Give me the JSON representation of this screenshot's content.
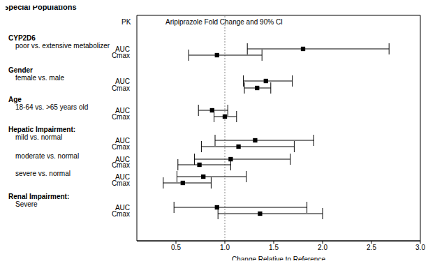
{
  "chart_data": {
    "type": "forest",
    "title": "Special Populations",
    "column_header": "PK",
    "subtitle": "Aripiprazole Fold Change and 90% CI",
    "x_label": "Change Relative to Reference",
    "xlim": [
      0.1,
      3
    ],
    "xticks": [
      0.5,
      {
        "value": 1,
        "label": "1.0"
      },
      1.5,
      {
        "value": 2,
        "label": "2.0"
      },
      2.5,
      {
        "value": 3,
        "label": "3.0"
      }
    ],
    "reference": 1,
    "color": "#000000",
    "marker": "square",
    "groups": [
      {
        "label": "CYP2D6",
        "sublabel": "poor vs. extensive metabolizer",
        "rows": [
          {
            "measure": "AUC",
            "value": 1.8,
            "ci": [
              1.23,
              2.68
            ]
          },
          {
            "measure": "Cmax",
            "value": 0.92,
            "ci": [
              0.63,
              1.38
            ]
          }
        ]
      },
      {
        "label": "Gender",
        "sublabel": "female vs. male",
        "rows": [
          {
            "measure": "AUC",
            "value": 1.42,
            "ci": [
              1.19,
              1.69
            ]
          },
          {
            "measure": "Cmax",
            "value": 1.33,
            "ci": [
              1.2,
              1.47
            ]
          }
        ]
      },
      {
        "label": "Age",
        "sublabel": "18-64 vs. >65 years old",
        "rows": [
          {
            "measure": "AUC",
            "value": 0.87,
            "ci": [
              0.73,
              1.03
            ]
          },
          {
            "measure": "Cmax",
            "value": 1.0,
            "ci": [
              0.89,
              1.12
            ]
          }
        ]
      },
      {
        "label": "Hepatic Impairment:",
        "sublabel": "mild vs. normal",
        "rows": [
          {
            "measure": "AUC",
            "value": 1.31,
            "ci": [
              0.9,
              1.91
            ]
          },
          {
            "measure": "Cmax",
            "value": 1.14,
            "ci": [
              0.76,
              1.71
            ]
          }
        ]
      },
      {
        "sublabel": "moderate vs. normal",
        "rows": [
          {
            "measure": "AUC",
            "value": 1.06,
            "ci": [
              0.69,
              1.67
            ]
          },
          {
            "measure": "Cmax",
            "value": 0.74,
            "ci": [
              0.52,
              1.06
            ]
          }
        ]
      },
      {
        "sublabel": "severe vs. normal",
        "rows": [
          {
            "measure": "AUC",
            "value": 0.78,
            "ci": [
              0.51,
              1.22
            ]
          },
          {
            "measure": "Cmax",
            "value": 0.57,
            "ci": [
              0.37,
              0.86
            ]
          }
        ]
      },
      {
        "label": "Renal Impairment:",
        "sublabel": "Severe",
        "rows": [
          {
            "measure": "AUC",
            "value": 0.92,
            "ci": [
              0.48,
              1.84
            ]
          },
          {
            "measure": "Cmax",
            "value": 1.36,
            "ci": [
              0.93,
              2.0
            ]
          }
        ]
      }
    ]
  }
}
